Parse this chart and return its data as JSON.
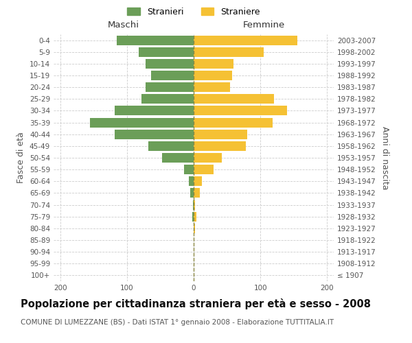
{
  "age_groups": [
    "100+",
    "95-99",
    "90-94",
    "85-89",
    "80-84",
    "75-79",
    "70-74",
    "65-69",
    "60-64",
    "55-59",
    "50-54",
    "45-49",
    "40-44",
    "35-39",
    "30-34",
    "25-29",
    "20-24",
    "15-19",
    "10-14",
    "5-9",
    "0-4"
  ],
  "birth_years": [
    "≤ 1907",
    "1908-1912",
    "1913-1917",
    "1918-1922",
    "1923-1927",
    "1928-1932",
    "1933-1937",
    "1938-1942",
    "1943-1947",
    "1948-1952",
    "1953-1957",
    "1958-1962",
    "1963-1967",
    "1968-1972",
    "1973-1977",
    "1978-1982",
    "1983-1987",
    "1988-1992",
    "1993-1997",
    "1998-2002",
    "2003-2007"
  ],
  "males": [
    0,
    0,
    0,
    0,
    0,
    2,
    1,
    5,
    7,
    14,
    47,
    68,
    118,
    155,
    118,
    78,
    72,
    64,
    72,
    82,
    115
  ],
  "females": [
    0,
    0,
    0,
    0,
    2,
    4,
    2,
    9,
    12,
    30,
    42,
    78,
    80,
    118,
    140,
    120,
    55,
    58,
    60,
    105,
    155
  ],
  "male_color": "#6b9e58",
  "female_color": "#f5c134",
  "background_color": "#ffffff",
  "grid_color": "#cccccc",
  "bar_height": 0.82,
  "xlim": 210,
  "title": "Popolazione per cittadinanza straniera per età e sesso - 2008",
  "subtitle": "COMUNE DI LUMEZZANE (BS) - Dati ISTAT 1° gennaio 2008 - Elaborazione TUTTITALIA.IT",
  "ylabel_left": "Fasce di età",
  "ylabel_right": "Anni di nascita",
  "xlabel_maschi": "Maschi",
  "xlabel_femmine": "Femmine",
  "legend_maschi": "Stranieri",
  "legend_femmine": "Straniere",
  "title_fontsize": 10.5,
  "subtitle_fontsize": 7.5,
  "label_fontsize": 9,
  "tick_fontsize": 7.5,
  "dashed_color": "#8a8844"
}
